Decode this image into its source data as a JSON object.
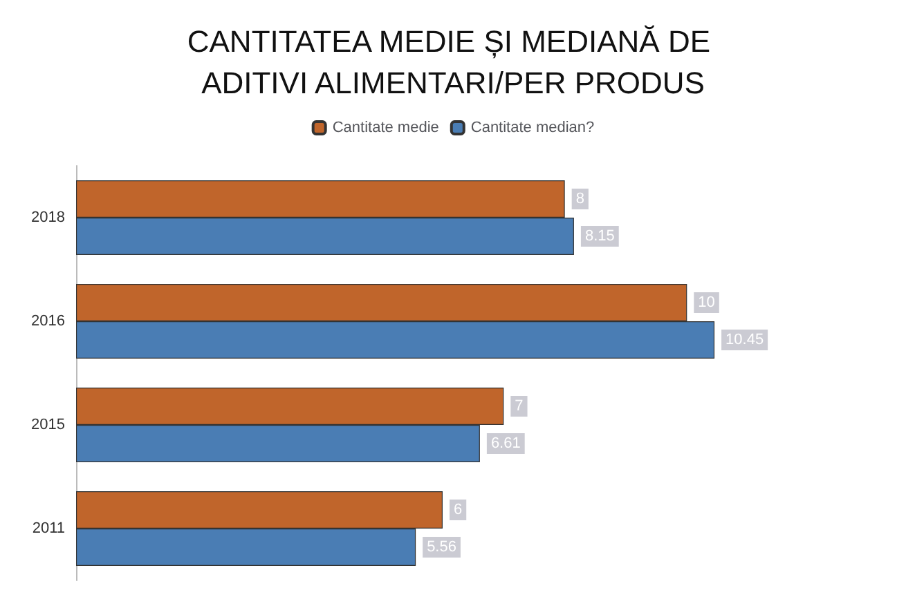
{
  "chart_data": {
    "type": "bar",
    "orientation": "horizontal",
    "title": "CANTITATEA MEDIE ȘI MEDIANĂ DE ADITIVI ALIMENTARI/PER PRODUS",
    "categories": [
      "2018",
      "2016",
      "2015",
      "2011"
    ],
    "series": [
      {
        "name": "Cantitate medie",
        "color": "#c0652b",
        "values": [
          8,
          10,
          7,
          6
        ]
      },
      {
        "name": "Cantitate median?",
        "color": "#4a7db4",
        "values": [
          8.15,
          10.45,
          6.61,
          5.56
        ]
      }
    ],
    "data_labels": true,
    "legend": "top",
    "grid": false,
    "tick_labels": "y"
  }
}
